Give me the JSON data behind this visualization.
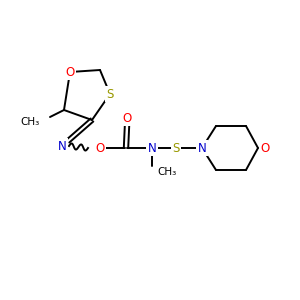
{
  "bg_color": "#ffffff",
  "atom_colors": {
    "C": "#000000",
    "N": "#0000cd",
    "O": "#ff0000",
    "S": "#999900"
  },
  "bond_color": "#000000",
  "figsize": [
    3.0,
    3.0
  ],
  "dpi": 100
}
